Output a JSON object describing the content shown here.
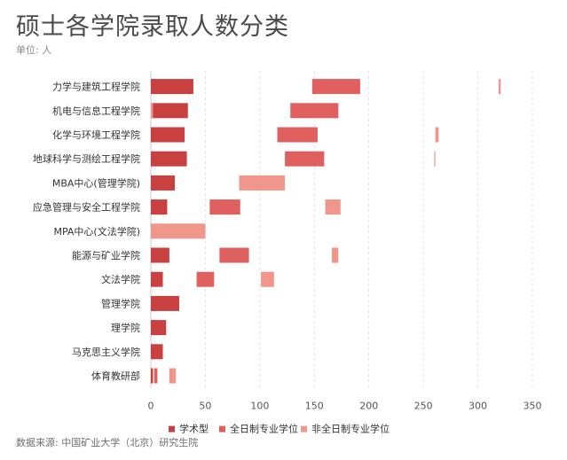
{
  "title": "硕士各学院录取人数分类",
  "unit_label": "单位: 人",
  "source": "数据来源: 中国矿业大学（北京）研究生院",
  "chart_data": {
    "type": "bar",
    "orientation": "horizontal",
    "layout": "series side by side with gaps along the x axis",
    "categories": [
      "力学与建筑工程学院",
      "机电与信息工程学院",
      "化学与环境工程学院",
      "地球科学与测绘工程学院",
      "MBA中心(管理学院)",
      "应急管理与安全工程学院",
      "MPA中心(文法学院)",
      "能源与矿业学院",
      "文法学院",
      "管理学院",
      "理学院",
      "马克思主义学院",
      "体育教研部"
    ],
    "series": [
      {
        "name": "学术型",
        "color": "#c94040",
        "values": [
          39,
          34,
          31,
          33,
          22,
          15,
          0,
          17,
          11,
          26,
          14,
          11,
          2
        ]
      },
      {
        "name": "全日制专业学位",
        "color": "#e06060",
        "values": [
          44,
          44,
          37,
          36,
          0,
          28,
          0,
          27,
          16,
          0,
          0,
          0,
          3
        ]
      },
      {
        "name": "非全日制专业学位",
        "color": "#f0968a",
        "values": [
          2,
          2,
          3,
          1,
          42,
          14,
          50,
          6,
          12,
          0,
          0,
          0,
          6
        ]
      }
    ],
    "segment_starts": [
      [
        0,
        148,
        319
      ],
      [
        0,
        128,
        0
      ],
      [
        0,
        116,
        261
      ],
      [
        0,
        123,
        260
      ],
      [
        0,
        0,
        81
      ],
      [
        0,
        54,
        160
      ],
      [
        0,
        0,
        0
      ],
      [
        0,
        63,
        166
      ],
      [
        0,
        42,
        101
      ],
      [
        0,
        0,
        0
      ],
      [
        0,
        0,
        0
      ],
      [
        0,
        0,
        0
      ],
      [
        0,
        3,
        17
      ]
    ],
    "x_ticks": [
      0,
      50,
      100,
      150,
      200,
      250,
      300,
      350
    ],
    "xlim": [
      0,
      350
    ],
    "grid": "vertical dashed",
    "legend_position": "bottom"
  }
}
